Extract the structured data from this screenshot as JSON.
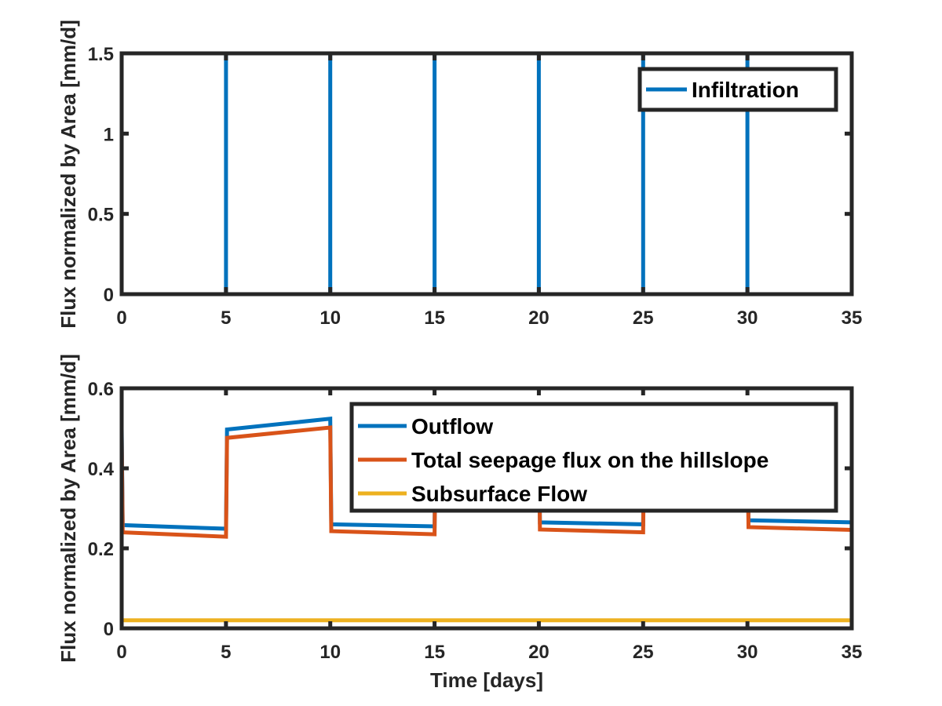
{
  "chart_data": [
    {
      "type": "line",
      "title": "",
      "xlabel": "",
      "ylabel": "Flux normalized by Area [mm/d]",
      "xlim": [
        0,
        35
      ],
      "ylim": [
        0,
        1.5
      ],
      "x_ticks": [
        "0",
        "5",
        "10",
        "15",
        "20",
        "25",
        "30",
        "35"
      ],
      "y_ticks": [
        "0",
        "0.5",
        "1",
        "1.5"
      ],
      "grid": false,
      "legend_position": "top-right",
      "series": [
        {
          "name": "Infiltration",
          "color": "#0072BD",
          "points": [
            [
              0,
              1.5
            ],
            [
              0,
              0
            ],
            [
              5,
              0
            ],
            [
              5,
              1.5
            ],
            [
              10,
              1.5
            ],
            [
              10,
              0
            ],
            [
              15,
              0
            ],
            [
              15,
              1.5
            ],
            [
              20,
              1.5
            ],
            [
              20,
              0
            ],
            [
              25,
              0
            ],
            [
              25,
              1.5
            ],
            [
              30,
              1.5
            ],
            [
              30,
              0
            ],
            [
              35,
              0
            ]
          ]
        }
      ]
    },
    {
      "type": "line",
      "title": "",
      "xlabel": "Time [days]",
      "ylabel": "Flux normalized by Area [mm/d]",
      "xlim": [
        0,
        35
      ],
      "ylim": [
        0,
        0.6
      ],
      "x_ticks": [
        "0",
        "5",
        "10",
        "15",
        "20",
        "25",
        "30",
        "35"
      ],
      "y_ticks": [
        "0",
        "0.2",
        "0.4",
        "0.6"
      ],
      "grid": false,
      "legend_position": "top-right",
      "series": [
        {
          "name": "Outflow",
          "color": "#0072BD",
          "points": [
            [
              0,
              0.5
            ],
            [
              0.05,
              0.258
            ],
            [
              5,
              0.249
            ],
            [
              5.05,
              0.497
            ],
            [
              10,
              0.524
            ],
            [
              10.05,
              0.26
            ],
            [
              15,
              0.255
            ],
            [
              15.05,
              0.5
            ],
            [
              20,
              0.525
            ],
            [
              20.05,
              0.265
            ],
            [
              25,
              0.26
            ],
            [
              25.05,
              0.5
            ],
            [
              30,
              0.525
            ],
            [
              30.05,
              0.27
            ],
            [
              35,
              0.265
            ]
          ]
        },
        {
          "name": "Total seepage flux on the hillslope",
          "color": "#D95319",
          "points": [
            [
              0,
              0.48
            ],
            [
              0.05,
              0.24
            ],
            [
              5,
              0.229
            ],
            [
              5.05,
              0.476
            ],
            [
              10,
              0.502
            ],
            [
              10.05,
              0.243
            ],
            [
              15,
              0.235
            ],
            [
              15.05,
              0.48
            ],
            [
              20,
              0.503
            ],
            [
              20.05,
              0.247
            ],
            [
              25,
              0.24
            ],
            [
              25.05,
              0.48
            ],
            [
              30,
              0.503
            ],
            [
              30.05,
              0.253
            ],
            [
              35,
              0.246
            ]
          ]
        },
        {
          "name": "Subsurface Flow",
          "color": "#EDB120",
          "points": [
            [
              0,
              0.02
            ],
            [
              35,
              0.02
            ]
          ]
        }
      ]
    }
  ]
}
